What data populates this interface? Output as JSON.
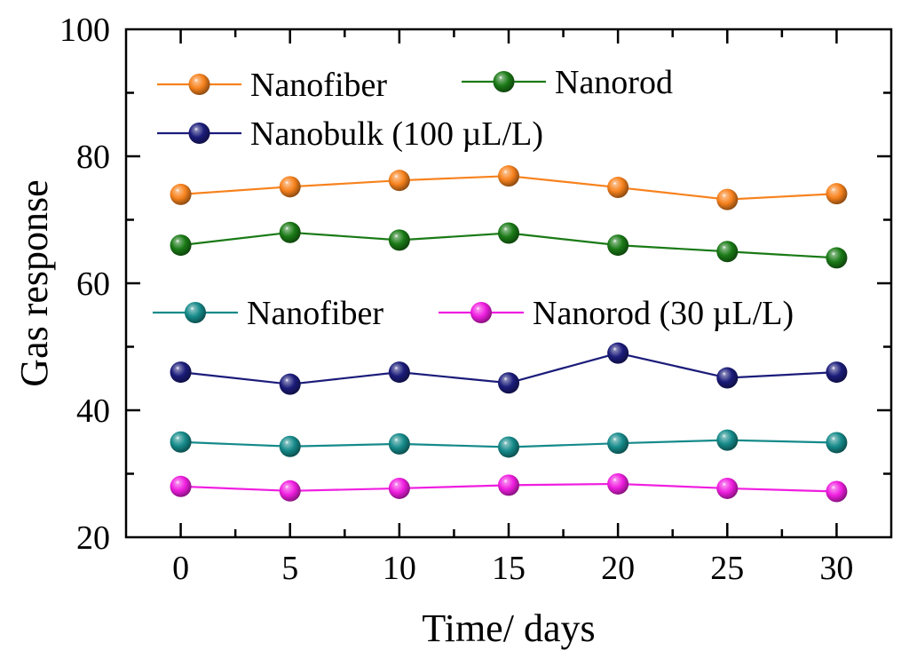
{
  "chart_data": {
    "type": "line",
    "title": "",
    "xlabel": "Time/ days",
    "ylabel": "Gas response",
    "xlim": [
      -2.5,
      32.5
    ],
    "ylim": [
      20,
      100
    ],
    "xticks": [
      0,
      5,
      10,
      15,
      20,
      25,
      30
    ],
    "yticks": [
      20,
      40,
      60,
      80,
      100
    ],
    "grid": false,
    "x": [
      0,
      5,
      10,
      15,
      20,
      25,
      30
    ],
    "series": [
      {
        "name": "Nanofiber",
        "group": "100 µL/L",
        "color": "#f7821d",
        "values": [
          74,
          75.2,
          76.2,
          76.9,
          75.1,
          73.2,
          74.1
        ]
      },
      {
        "name": "Nanorod",
        "group": "100 µL/L",
        "color": "#1a7a16",
        "values": [
          66,
          68,
          66.8,
          67.9,
          66,
          65,
          64
        ]
      },
      {
        "name": "Nanobulk",
        "group": "100 µL/L",
        "color": "#1b1c7a",
        "values": [
          46,
          44.1,
          46,
          44.3,
          49,
          45.1,
          46
        ]
      },
      {
        "name": "Nanofiber",
        "group": "30 µL/L",
        "color": "#168a8a",
        "values": [
          35,
          34.3,
          34.7,
          34.2,
          34.8,
          35.3,
          34.9
        ]
      },
      {
        "name": "Nanorod",
        "group": "30 µL/L",
        "color": "#f01ee0",
        "values": [
          28,
          27.3,
          27.7,
          28.2,
          28.4,
          27.7,
          27.2
        ]
      }
    ],
    "legend": {
      "group1": {
        "placement": "top-left",
        "entries": [
          {
            "series": 0,
            "label": "Nanofiber"
          },
          {
            "series": 1,
            "label": "Nanorod"
          },
          {
            "series": 2,
            "label": "Nanobulk (100 µL/L)"
          }
        ]
      },
      "group2": {
        "placement": "middle-left",
        "entries": [
          {
            "series": 3,
            "label": "Nanofiber"
          },
          {
            "series": 4,
            "label": "Nanorod (30 µL/L)"
          }
        ]
      }
    }
  }
}
